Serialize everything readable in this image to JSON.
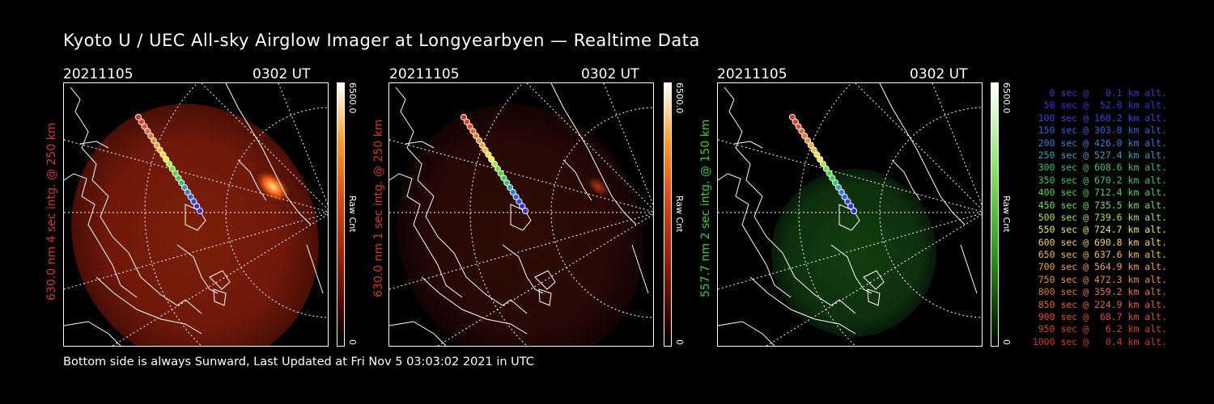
{
  "title": "Kyoto U / UEC All-sky Airglow Imager at Longyearbyen — Realtime Data",
  "footer": "Bottom side is always Sunward, Last Updated at Fri Nov  5 03:03:02 2021 in UTC",
  "panels": [
    {
      "date": "20211105",
      "time": "0302 UT",
      "side_label": "630.0 nm 4 sec intg. @ 250 km",
      "side_color": "#e0301e",
      "cbar_max": "6500.0",
      "cbar_unit": "Raw Cnt",
      "cbar_min": "0",
      "cmap": "red",
      "brightness": "bright"
    },
    {
      "date": "20211105",
      "time": "0302 UT",
      "side_label": "630.0 nm 1 sec intg. @ 250 km",
      "side_color": "#e0301e",
      "cbar_max": "6500.0",
      "cbar_unit": "Raw Cnt",
      "cbar_min": "0",
      "cmap": "red",
      "brightness": "dim"
    },
    {
      "date": "20211105",
      "time": "0302 UT",
      "side_label": "557.7 nm 2 sec intg. @ 150 km",
      "side_color": "#35d31a",
      "cbar_max": "6500.0",
      "cbar_unit": "Raw Cnt",
      "cbar_min": "0",
      "cmap": "green",
      "brightness": "dim"
    }
  ],
  "legend": [
    {
      "text": "0 sec @   0.1 km alt.",
      "color": "#3d2fd6"
    },
    {
      "text": "50 sec @  52.0 km alt.",
      "color": "#3a2ee0"
    },
    {
      "text": "100 sec @ 160.2 km alt.",
      "color": "#2e45e6"
    },
    {
      "text": "150 sec @ 303.8 km alt.",
      "color": "#2a62e3"
    },
    {
      "text": "200 sec @ 426.0 km alt.",
      "color": "#2a80dc"
    },
    {
      "text": "250 sec @ 527.4 km alt.",
      "color": "#2aa3c0"
    },
    {
      "text": "300 sec @ 608.6 km alt.",
      "color": "#2fc37a"
    },
    {
      "text": "350 sec @ 670.2 km alt.",
      "color": "#36d04a"
    },
    {
      "text": "400 sec @ 712.4 km alt.",
      "color": "#45dc38"
    },
    {
      "text": "450 sec @ 735.5 km alt.",
      "color": "#6ee33a"
    },
    {
      "text": "500 sec @ 739.6 km alt.",
      "color": "#a6ec3c"
    },
    {
      "text": "550 sec @ 724.7 km alt.",
      "color": "#e6f040"
    },
    {
      "text": "600 sec @ 690.8 km alt.",
      "color": "#f5d83c"
    },
    {
      "text": "650 sec @ 637.6 km alt.",
      "color": "#f5bd35"
    },
    {
      "text": "700 sec @ 564.9 km alt.",
      "color": "#f3a532"
    },
    {
      "text": "750 sec @ 472.3 km alt.",
      "color": "#ef8d30"
    },
    {
      "text": "800 sec @ 359.2 km alt.",
      "color": "#ec752e"
    },
    {
      "text": "850 sec @ 224.9 km alt.",
      "color": "#e9602c"
    },
    {
      "text": "900 sec @  68.7 km alt.",
      "color": "#e54c28"
    },
    {
      "text": "950 sec @   6.2 km alt.",
      "color": "#e23d26"
    },
    {
      "text": "1000 sec @   0.4 km alt.",
      "color": "#df3024"
    }
  ]
}
